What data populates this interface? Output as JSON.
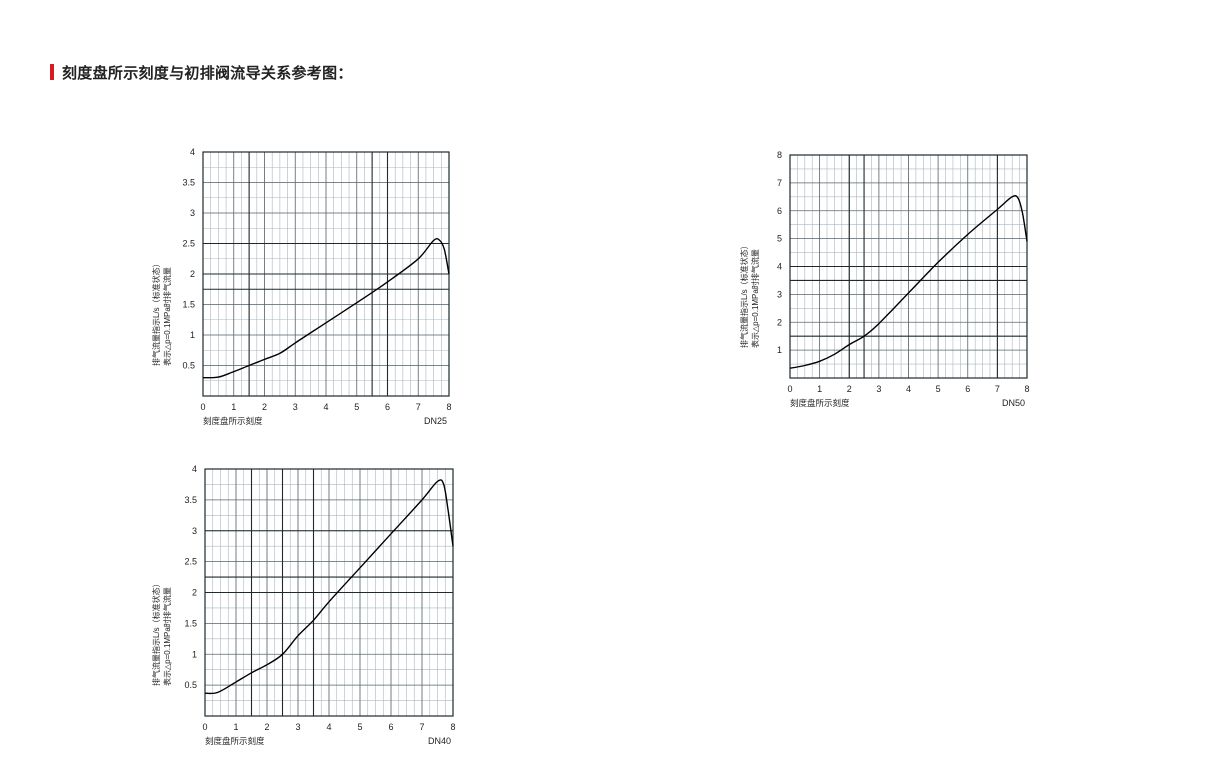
{
  "header": {
    "title": "刻度盘所示刻度与初排阀流导关系参考图：",
    "accent_color": "#d71920"
  },
  "chart_data": [
    {
      "type": "line",
      "model": "DN25",
      "xlabel": "刻度盘所示刻度",
      "ylabel_lines": [
        "排气流量指示L/s（标准状态）",
        "表示△p=0.1MPa时排气流量"
      ],
      "xlim": [
        0,
        8
      ],
      "ylim": [
        0,
        4
      ],
      "x_ticks": [
        "0",
        "1",
        "2",
        "3",
        "4",
        "5",
        "6",
        "7",
        "8"
      ],
      "y_ticks": [
        "0.5",
        "1",
        "1.5",
        "2",
        "2.5",
        "3",
        "3.5",
        "4"
      ],
      "major_grid_x": [
        1.5,
        5.5,
        6
      ],
      "major_grid_y": [
        1.75,
        2.0,
        2.5
      ],
      "minor_grid": true,
      "curve": [
        [
          0,
          0.3
        ],
        [
          0.5,
          0.31
        ],
        [
          1,
          0.4
        ],
        [
          1.5,
          0.5
        ],
        [
          2,
          0.6
        ],
        [
          2.5,
          0.7
        ],
        [
          3,
          0.87
        ],
        [
          4,
          1.2
        ],
        [
          5,
          1.53
        ],
        [
          6,
          1.87
        ],
        [
          7,
          2.25
        ],
        [
          7.5,
          2.55
        ],
        [
          7.7,
          2.55
        ],
        [
          7.85,
          2.4
        ],
        [
          8,
          2.0
        ]
      ]
    },
    {
      "type": "line",
      "model": "DN50",
      "xlabel": "刻度盘所示刻度",
      "ylabel_lines": [
        "排气流量指示L/s（标准状态）",
        "表示△p=0.1MPa时排气流量"
      ],
      "xlim": [
        0,
        8
      ],
      "ylim": [
        0,
        8
      ],
      "x_ticks": [
        "0",
        "1",
        "2",
        "3",
        "4",
        "5",
        "6",
        "7",
        "8"
      ],
      "y_ticks": [
        "1",
        "2",
        "3",
        "4",
        "5",
        "6",
        "7",
        "8"
      ],
      "major_grid_x": [
        2,
        2.5,
        7
      ],
      "major_grid_y": [
        1.5,
        3.5,
        4
      ],
      "minor_grid": true,
      "curve": [
        [
          0,
          0.35
        ],
        [
          0.5,
          0.45
        ],
        [
          1,
          0.6
        ],
        [
          1.5,
          0.85
        ],
        [
          2,
          1.2
        ],
        [
          2.5,
          1.5
        ],
        [
          3,
          1.95
        ],
        [
          4,
          3.05
        ],
        [
          5,
          4.15
        ],
        [
          6,
          5.15
        ],
        [
          7,
          6.05
        ],
        [
          7.5,
          6.5
        ],
        [
          7.7,
          6.45
        ],
        [
          7.85,
          5.9
        ],
        [
          8,
          4.9
        ]
      ]
    },
    {
      "type": "line",
      "model": "DN40",
      "xlabel": "刻度盘所示刻度",
      "ylabel_lines": [
        "排气流量指示L/s（标准状态）",
        "表示△p=0.1MPa时排气流量"
      ],
      "xlim": [
        0,
        8
      ],
      "ylim": [
        0,
        4
      ],
      "x_ticks": [
        "0",
        "1",
        "2",
        "3",
        "4",
        "5",
        "6",
        "7",
        "8"
      ],
      "y_ticks": [
        "0.5",
        "1",
        "1.5",
        "2",
        "2.5",
        "3",
        "3.5",
        "4"
      ],
      "major_grid_x": [
        1.5,
        2.5,
        3.5
      ],
      "major_grid_y": [
        2.0,
        2.25,
        3.0
      ],
      "minor_grid": true,
      "curve": [
        [
          0,
          0.37
        ],
        [
          0.4,
          0.38
        ],
        [
          1,
          0.55
        ],
        [
          1.5,
          0.7
        ],
        [
          2,
          0.83
        ],
        [
          2.5,
          1.0
        ],
        [
          3,
          1.3
        ],
        [
          3.5,
          1.55
        ],
        [
          4,
          1.85
        ],
        [
          5,
          2.4
        ],
        [
          6,
          2.95
        ],
        [
          7,
          3.5
        ],
        [
          7.5,
          3.8
        ],
        [
          7.7,
          3.75
        ],
        [
          7.85,
          3.3
        ],
        [
          8,
          2.75
        ]
      ]
    }
  ]
}
